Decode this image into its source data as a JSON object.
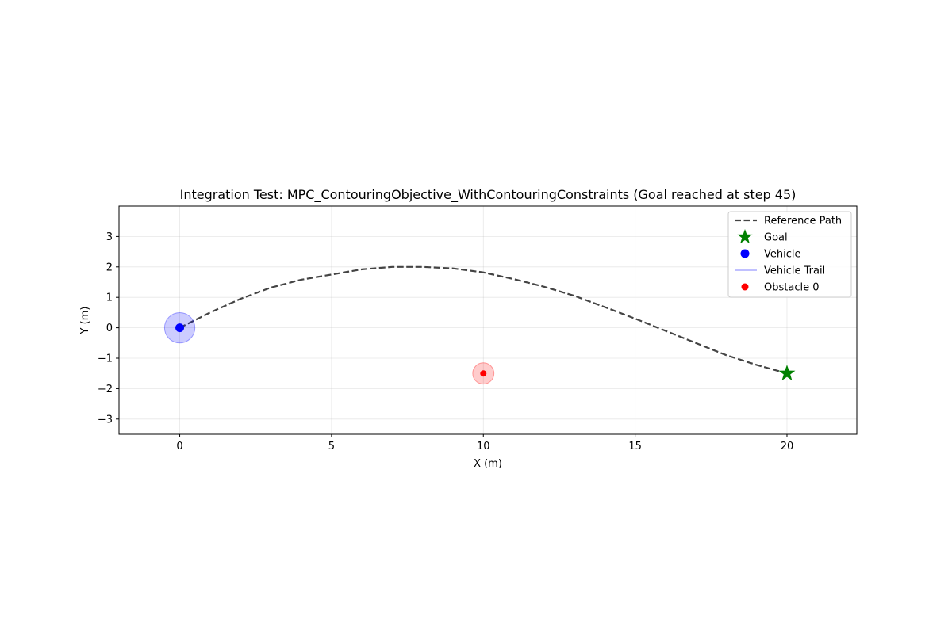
{
  "chart_data": {
    "type": "scatter",
    "title": "Integration Test: MPC_ContouringObjective_WithContouringConstraints (Goal reached at step 45)",
    "xlabel": "X (m)",
    "ylabel": "Y (m)",
    "xlim": [
      -2,
      22.3
    ],
    "ylim": [
      -3.5,
      4.0
    ],
    "x_ticks": [
      0,
      5,
      10,
      15,
      20
    ],
    "y_ticks": [
      -3,
      -2,
      -1,
      0,
      1,
      2,
      3
    ],
    "x_tick_labels": [
      "0",
      "5",
      "10",
      "15",
      "20"
    ],
    "y_tick_labels": [
      "−3",
      "−2",
      "−1",
      "0",
      "1",
      "2",
      "3"
    ],
    "grid": true,
    "legend_position": "top-right",
    "series": [
      {
        "name": "Reference Path",
        "kind": "dashed-line",
        "color": "#444444",
        "x": [
          0,
          1,
          2,
          3,
          4,
          5,
          6,
          7,
          8,
          9,
          10,
          11,
          12,
          13,
          14,
          15,
          16,
          17,
          18,
          19,
          20
        ],
        "y": [
          0,
          0.5,
          0.95,
          1.32,
          1.58,
          1.75,
          1.92,
          2.0,
          2.0,
          1.95,
          1.82,
          1.6,
          1.35,
          1.05,
          0.68,
          0.3,
          -0.1,
          -0.5,
          -0.9,
          -1.22,
          -1.5
        ]
      },
      {
        "name": "Goal",
        "kind": "star",
        "color": "#008000",
        "x": [
          20
        ],
        "y": [
          -1.5
        ]
      },
      {
        "name": "Vehicle",
        "kind": "point",
        "color": "#0000ff",
        "x": [
          0
        ],
        "y": [
          0
        ],
        "radius_m": 0.5
      },
      {
        "name": "Vehicle Trail",
        "kind": "line",
        "color": "#8080ff",
        "x": [
          0
        ],
        "y": [
          0
        ]
      },
      {
        "name": "Obstacle 0",
        "kind": "point",
        "color": "#ff0000",
        "x": [
          10
        ],
        "y": [
          -1.5
        ],
        "radius_m": 0.35
      }
    ]
  }
}
